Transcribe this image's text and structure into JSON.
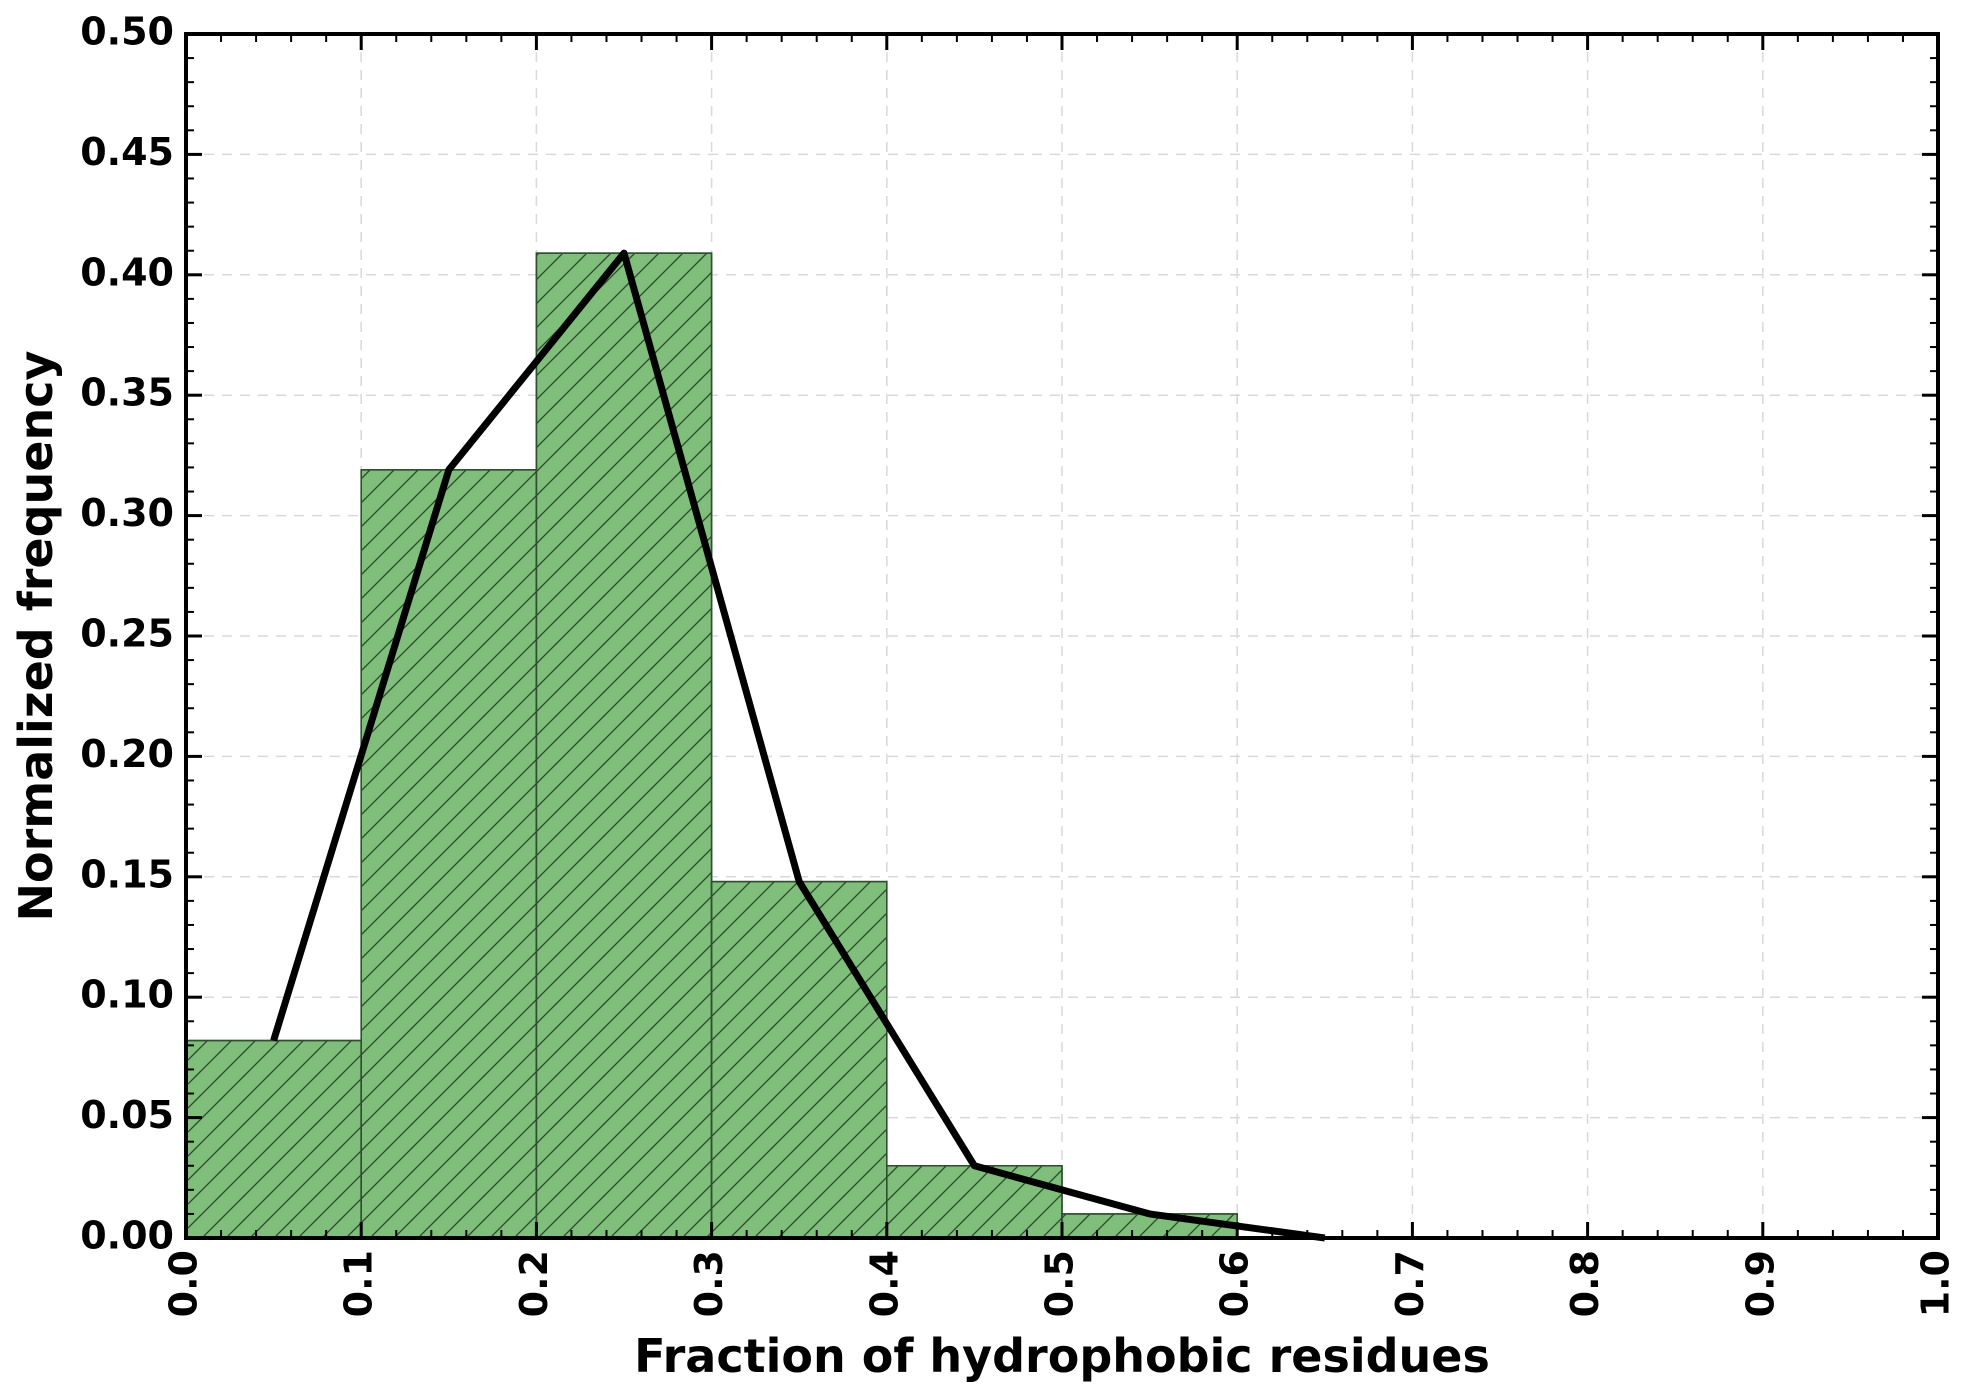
{
  "chart_data": {
    "type": "bar",
    "title": "",
    "xlabel": "Fraction of hydrophobic residues",
    "ylabel": "Normalized frequency",
    "xlim": [
      0.0,
      1.0
    ],
    "ylim": [
      0.0,
      0.5
    ],
    "grid": true,
    "xticks": [
      "0.0",
      "0.1",
      "0.2",
      "0.3",
      "0.4",
      "0.5",
      "0.6",
      "0.7",
      "0.8",
      "0.9",
      "1.0"
    ],
    "yticks": [
      "0.00",
      "0.05",
      "0.10",
      "0.15",
      "0.20",
      "0.25",
      "0.30",
      "0.35",
      "0.40",
      "0.45",
      "0.50"
    ],
    "bins": [
      {
        "x0": 0.0,
        "x1": 0.1,
        "value": 0.082
      },
      {
        "x0": 0.1,
        "x1": 0.2,
        "value": 0.319
      },
      {
        "x0": 0.2,
        "x1": 0.3,
        "value": 0.409
      },
      {
        "x0": 0.3,
        "x1": 0.4,
        "value": 0.148
      },
      {
        "x0": 0.4,
        "x1": 0.5,
        "value": 0.03
      },
      {
        "x0": 0.5,
        "x1": 0.6,
        "value": 0.01
      }
    ],
    "line": {
      "x": [
        0.05,
        0.15,
        0.25,
        0.35,
        0.45,
        0.55,
        0.65
      ],
      "y": [
        0.082,
        0.319,
        0.409,
        0.148,
        0.03,
        0.01,
        0.0
      ],
      "color": "#000000"
    },
    "bar_color": "#7fbf7b",
    "hatch": "diagonal"
  }
}
